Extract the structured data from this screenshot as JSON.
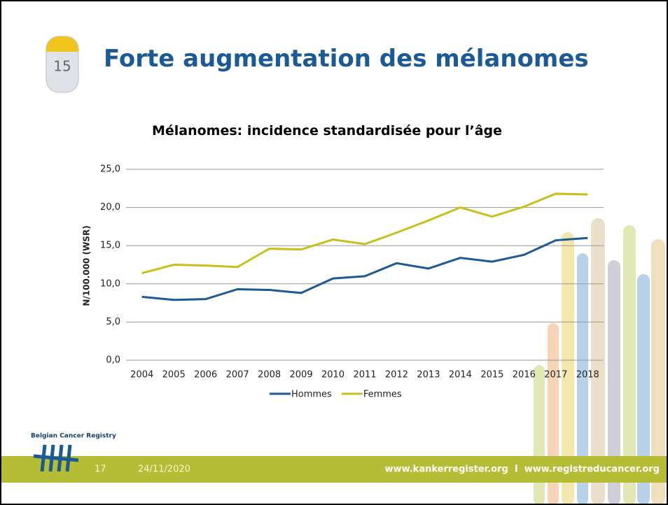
{
  "slide": {
    "title": "Forte augmentation des mélanomes",
    "icon_label": "15",
    "logo_text": "Belgian Cancer Registry",
    "page_number": "17",
    "date": "24/11/2020",
    "websites": "www.kankerregister.org  I  www.registreducancer.org"
  },
  "chart_data": {
    "type": "line",
    "title": "Mélanomes: incidence standardisée pour l’âge",
    "y_label": "N/100.000 (WSR)",
    "categories": [
      "2004",
      "2005",
      "2006",
      "2007",
      "2008",
      "2009",
      "2010",
      "2011",
      "2012",
      "2013",
      "2014",
      "2015",
      "2016",
      "2017",
      "2018"
    ],
    "series": [
      {
        "name": "Hommes",
        "color": "#1b5a94",
        "values": [
          8.3,
          7.9,
          8.0,
          9.3,
          9.2,
          8.8,
          10.7,
          11.0,
          12.7,
          12.0,
          13.4,
          12.9,
          13.8,
          15.7,
          16.0
        ]
      },
      {
        "name": "Femmes",
        "color": "#c6bf1c",
        "values": [
          11.4,
          12.5,
          12.4,
          12.2,
          14.6,
          14.5,
          15.8,
          15.2,
          16.7,
          18.3,
          20.0,
          18.8,
          20.1,
          21.8,
          21.7
        ]
      }
    ],
    "ylim": [
      0,
      25
    ],
    "yticks": [
      {
        "value": 0,
        "label": "0,0"
      },
      {
        "value": 5,
        "label": "5,0"
      },
      {
        "value": 10,
        "label": "10,0"
      },
      {
        "value": 15,
        "label": "15,0"
      },
      {
        "value": 20,
        "label": "20,0"
      },
      {
        "value": 25,
        "label": "25,0"
      }
    ],
    "grid": true,
    "legend": "bottom"
  }
}
